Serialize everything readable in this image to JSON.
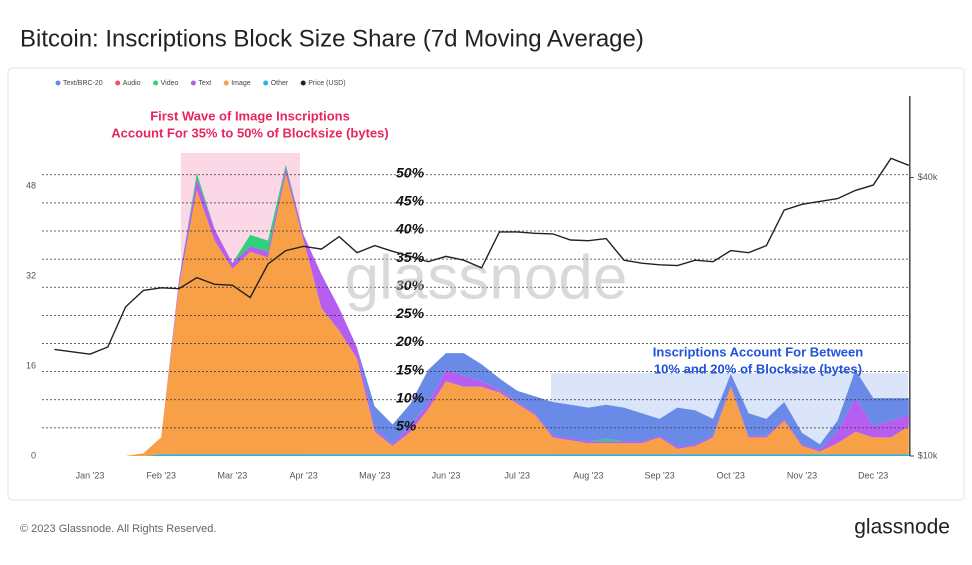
{
  "chart_data": {
    "type": "area",
    "title": "Bitcoin: Inscriptions Block Size Share (7d Moving Average)",
    "categories": [
      null,
      null,
      "Jan '23",
      null,
      null,
      null,
      "Feb '23",
      null,
      null,
      null,
      "Mar '23",
      null,
      null,
      null,
      "Apr '23",
      null,
      null,
      null,
      "May '23",
      null,
      null,
      null,
      "Jun '23",
      null,
      null,
      null,
      "Jul '23",
      null,
      null,
      null,
      "Aug '23",
      null,
      null,
      null,
      "Sep '23",
      null,
      null,
      null,
      "Oct '23",
      null,
      null,
      null,
      "Nov '23",
      null,
      null,
      null,
      "Dec '23",
      null,
      null
    ],
    "series": [
      {
        "name": "Text/BRC-20",
        "color": "#6a8ae8",
        "values": [
          0,
          0,
          0,
          0,
          0,
          0,
          0,
          0,
          0,
          0,
          0,
          0,
          0,
          0,
          0,
          0,
          0,
          0,
          4,
          3.5,
          4,
          6,
          3,
          4,
          3,
          2,
          2,
          3,
          6,
          6,
          6,
          6,
          6,
          5,
          3,
          7,
          6,
          3,
          2,
          4,
          3,
          3,
          2,
          1,
          2,
          5,
          5,
          4,
          3
        ]
      },
      {
        "name": "Audio",
        "color": "#f0525c",
        "values": [
          0,
          0,
          0,
          0,
          0,
          0,
          0,
          0,
          0,
          0,
          0,
          0,
          0,
          0,
          0,
          0,
          0,
          0,
          0,
          0,
          0,
          0,
          0,
          0,
          0,
          0,
          0,
          0,
          0,
          0,
          0,
          0,
          0,
          0,
          0,
          0,
          0,
          0,
          0,
          0,
          0,
          0,
          0,
          0,
          0,
          0,
          0,
          0,
          0
        ]
      },
      {
        "name": "Video",
        "color": "#2fd27a",
        "values": [
          0,
          0,
          0,
          0,
          0,
          0,
          0,
          0,
          1,
          0,
          0,
          2,
          2,
          0.5,
          0,
          0,
          0,
          0,
          0,
          0,
          0,
          0,
          0,
          0,
          0,
          0,
          0,
          0,
          0,
          0,
          0,
          0.5,
          0,
          0,
          0,
          0,
          0,
          0,
          0,
          0,
          0,
          0,
          0,
          0,
          0,
          0,
          0,
          0,
          0
        ]
      },
      {
        "name": "Text",
        "color": "#b55ef0",
        "values": [
          0,
          0,
          0,
          0,
          0,
          0,
          0,
          1,
          2,
          2,
          1,
          1,
          1,
          1,
          1,
          6,
          4,
          2,
          0.5,
          0.3,
          1,
          1,
          2,
          2,
          1,
          0.5,
          0.3,
          0.3,
          0.3,
          0.3,
          0.3,
          0.3,
          0.3,
          0.3,
          0.3,
          0.3,
          0.3,
          0.3,
          0.3,
          0.3,
          0.3,
          0.3,
          0.3,
          0.3,
          2,
          6,
          2,
          3,
          2
        ]
      },
      {
        "name": "Image",
        "color": "#f7a047",
        "values": [
          0,
          0,
          0,
          0,
          0,
          0.5,
          3,
          30,
          47,
          38,
          33,
          36,
          35,
          50,
          38,
          26,
          22,
          17,
          4,
          1.5,
          4,
          8,
          13,
          12,
          12,
          11,
          9,
          7,
          3,
          2.5,
          2,
          2,
          2,
          2,
          3,
          1,
          1.5,
          3,
          12,
          3,
          3,
          6,
          1.5,
          0.5,
          2,
          4,
          3,
          3,
          5
        ]
      },
      {
        "name": "Other",
        "color": "#27b2e3",
        "values": [
          0,
          0,
          0,
          0,
          0,
          0,
          0.3,
          0.3,
          0.3,
          0.3,
          0.3,
          0.3,
          0.3,
          0.3,
          0.3,
          0.3,
          0.3,
          0.3,
          0.3,
          0.3,
          0.3,
          0.3,
          0.3,
          0.3,
          0.3,
          0.3,
          0.3,
          0.3,
          0.3,
          0.3,
          0.3,
          0.3,
          0.3,
          0.3,
          0.3,
          0.3,
          0.3,
          0.3,
          0.3,
          0.3,
          0.3,
          0.3,
          0.3,
          0.3,
          0.3,
          0.3,
          0.3,
          0.3,
          0.3
        ]
      },
      {
        "name": "Price (USD)",
        "color": "#222222",
        "axis": "y2",
        "values": [
          17000,
          16800,
          16600,
          17200,
          21000,
          22800,
          23100,
          23000,
          24300,
          23500,
          23400,
          22000,
          26000,
          27800,
          28400,
          28000,
          29800,
          27500,
          28500,
          27700,
          27000,
          26300,
          27000,
          26500,
          25500,
          30500,
          30500,
          30300,
          30200,
          29300,
          29200,
          29500,
          26500,
          26100,
          25900,
          25800,
          26500,
          26300,
          27800,
          27500,
          28500,
          34000,
          35000,
          35500,
          36000,
          37500,
          38500,
          44000,
          42500
        ]
      }
    ],
    "ylim": [
      0,
      64
    ],
    "yticks": [
      0,
      16,
      32,
      48
    ],
    "y2lim": [
      10000,
      60000
    ],
    "y2scale": "log",
    "y2ticks": [
      {
        "value": 10000,
        "label": "$10k"
      },
      {
        "value": 40000,
        "label": "$40k"
      }
    ],
    "reference_lines": [
      {
        "value": 5,
        "label": "5%"
      },
      {
        "value": 10,
        "label": "10%"
      },
      {
        "value": 15,
        "label": "15%"
      },
      {
        "value": 20,
        "label": "20%"
      },
      {
        "value": 25,
        "label": "25%"
      },
      {
        "value": 30,
        "label": "30%"
      },
      {
        "value": 35,
        "label": "35%"
      },
      {
        "value": 40,
        "label": "40%"
      },
      {
        "value": 45,
        "label": "45%"
      },
      {
        "value": 50,
        "label": "50%"
      }
    ],
    "annotations": [
      {
        "lines": [
          "First Wave of Image Inscriptions",
          "Account For 35% to 50% of Blocksize (bytes)"
        ],
        "color": "#e8265e",
        "fill": "#f9b8d4"
      },
      {
        "lines": [
          "Inscriptions Account For Between",
          "10% and 20% of Blocksize (bytes)"
        ],
        "color": "#1f52e0",
        "fill": "#bcd0f5"
      }
    ],
    "legend": "top-left",
    "watermark": "glassnode"
  },
  "footer": {
    "copyright": "© 2023 Glassnode. All Rights Reserved.",
    "brand": "glassnode"
  }
}
